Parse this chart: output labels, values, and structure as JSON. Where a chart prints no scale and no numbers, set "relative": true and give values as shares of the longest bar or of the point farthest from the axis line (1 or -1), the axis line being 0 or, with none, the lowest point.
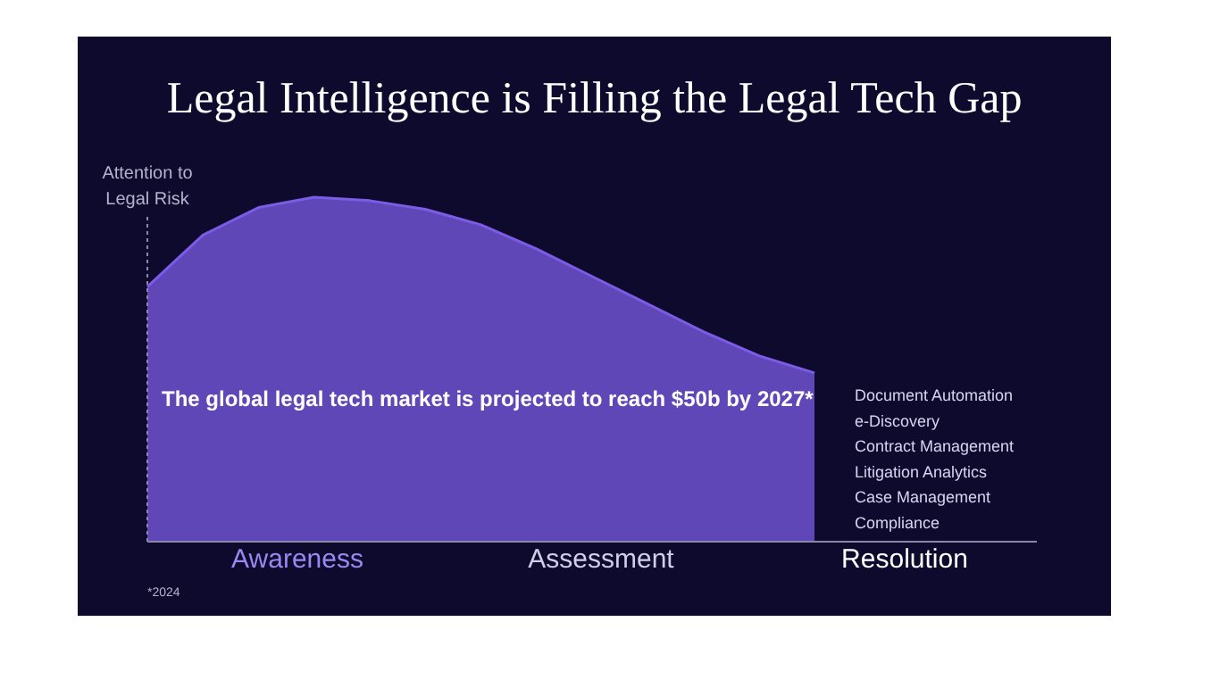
{
  "chart_data": {
    "type": "area",
    "title": "Legal Intelligence is Filling the Legal Tech Gap",
    "ylabel": "Attention to\nLegal Risk",
    "relative": true,
    "categories": [
      null,
      null,
      null,
      null,
      null,
      null,
      null,
      null,
      null,
      null,
      null,
      null,
      null
    ],
    "values": [
      0.74,
      0.89,
      0.97,
      1.0,
      0.99,
      0.965,
      0.92,
      0.85,
      0.77,
      0.69,
      0.61,
      0.54,
      0.49
    ],
    "color": "#7c5ce6",
    "annotations": [
      "The global legal tech market is projected to reach $50b by 2027*",
      "Document Automation",
      "e-Discovery",
      "Contract Management",
      "Litigation Analytics",
      "Case Management",
      "Compliance",
      "Awareness",
      "Assessment",
      "Resolution",
      "*2024"
    ],
    "grid": false,
    "legend": false
  }
}
